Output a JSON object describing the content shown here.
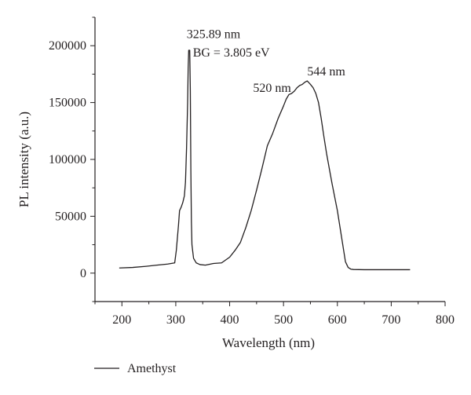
{
  "chart_data": {
    "type": "line",
    "title": "",
    "xlabel": "Wavelength (nm)",
    "ylabel": "PL intensity (a.u.)",
    "xlim": [
      150,
      800
    ],
    "ylim": [
      -25000,
      225000
    ],
    "xticks": [
      200,
      300,
      400,
      500,
      600,
      700,
      800
    ],
    "yticks": [
      0,
      50000,
      100000,
      150000,
      200000
    ],
    "grid": false,
    "legend_position": "bottom-left",
    "series": [
      {
        "name": "Amethyst",
        "color": "#231f20",
        "x": [
          195,
          220,
          245,
          265,
          285,
          298,
          301,
          305,
          307,
          310,
          313,
          316,
          318,
          320,
          322,
          323,
          324,
          325,
          325.89,
          327,
          328,
          329,
          330,
          333,
          338,
          345,
          355,
          370,
          385,
          400,
          410,
          420,
          430,
          440,
          450,
          460,
          470,
          480,
          490,
          500,
          505,
          510,
          515,
          520,
          525,
          530,
          535,
          540,
          544,
          550,
          555,
          560,
          565,
          570,
          575,
          580,
          585,
          590,
          595,
          600,
          605,
          610,
          615,
          620,
          625,
          630,
          650,
          700,
          735
        ],
        "y": [
          4500,
          5000,
          6000,
          7000,
          8000,
          9000,
          20000,
          42000,
          55000,
          58000,
          62000,
          68000,
          80000,
          110000,
          150000,
          180000,
          196000,
          196000,
          196000,
          160000,
          90000,
          45000,
          25000,
          13000,
          9000,
          7500,
          7000,
          8500,
          9000,
          14000,
          20000,
          27000,
          40000,
          55000,
          73000,
          92000,
          112000,
          123000,
          136000,
          147000,
          153000,
          157000,
          158000,
          160000,
          163000,
          165000,
          166000,
          168000,
          169000,
          166000,
          163000,
          158000,
          150000,
          136000,
          120000,
          105000,
          92000,
          79000,
          67000,
          55000,
          40000,
          25000,
          10000,
          5000,
          3500,
          3200,
          3000,
          3000,
          3000
        ]
      }
    ],
    "annotations": [
      {
        "text": "325.89 nm",
        "x": 325.89,
        "y": 208000
      },
      {
        "text": "BG = 3.805 eV",
        "x": 325.89,
        "y": 192000
      },
      {
        "text": "520 nm",
        "x": 520,
        "y": 160000
      },
      {
        "text": "544 nm",
        "x": 544,
        "y": 169000
      }
    ]
  }
}
